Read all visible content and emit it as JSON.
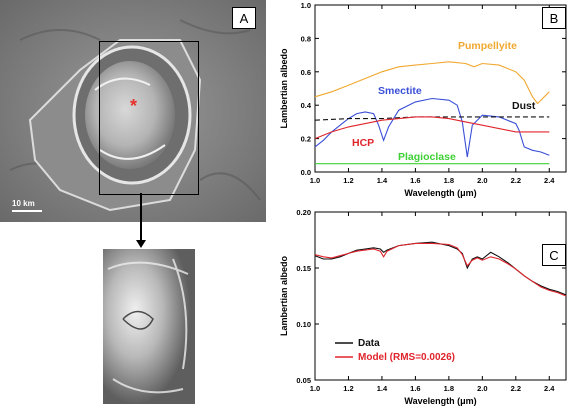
{
  "panels": {
    "a": {
      "letter": "A",
      "scale_label": "10 km"
    },
    "b": {
      "letter": "B"
    },
    "c": {
      "letter": "C"
    }
  },
  "colors": {
    "pumpellyite": "#f0a830",
    "smectite": "#3a4fd8",
    "dust": "#111111",
    "hcp": "#e0242c",
    "plagioclase": "#3ed036",
    "data": "#111111",
    "model": "#e0242c",
    "marker": "#e8302a"
  },
  "chart_data": [
    {
      "type": "line",
      "panel": "B",
      "xlabel": "Wavelength (μm)",
      "ylabel": "Lambertian albedo",
      "xlim": [
        1.0,
        2.5
      ],
      "ylim": [
        0.0,
        1.0
      ],
      "xticks": [
        "1.0",
        "1.2",
        "1.4",
        "1.6",
        "1.8",
        "2.0",
        "2.2",
        "2.4"
      ],
      "yticks": [
        "0.0",
        "0.2",
        "0.4",
        "0.6",
        "0.8",
        "1.0"
      ],
      "grid": false,
      "series": [
        {
          "name": "Pumpellyite",
          "dash": false,
          "x": [
            1.0,
            1.1,
            1.2,
            1.3,
            1.4,
            1.5,
            1.6,
            1.7,
            1.8,
            1.9,
            1.95,
            2.0,
            2.1,
            2.2,
            2.25,
            2.3,
            2.33,
            2.36,
            2.4
          ],
          "y": [
            0.45,
            0.48,
            0.52,
            0.56,
            0.6,
            0.63,
            0.64,
            0.65,
            0.66,
            0.65,
            0.63,
            0.65,
            0.64,
            0.6,
            0.55,
            0.45,
            0.41,
            0.44,
            0.48
          ]
        },
        {
          "name": "Smectite",
          "dash": false,
          "x": [
            1.0,
            1.05,
            1.1,
            1.15,
            1.2,
            1.25,
            1.3,
            1.35,
            1.38,
            1.41,
            1.44,
            1.5,
            1.6,
            1.7,
            1.8,
            1.85,
            1.88,
            1.91,
            1.94,
            2.0,
            2.1,
            2.2,
            2.22,
            2.25,
            2.3,
            2.35,
            2.4
          ],
          "y": [
            0.15,
            0.19,
            0.24,
            0.28,
            0.32,
            0.35,
            0.36,
            0.35,
            0.28,
            0.19,
            0.27,
            0.37,
            0.42,
            0.44,
            0.43,
            0.4,
            0.3,
            0.09,
            0.28,
            0.34,
            0.33,
            0.29,
            0.25,
            0.15,
            0.13,
            0.12,
            0.1
          ]
        },
        {
          "name": "Dust",
          "dash": true,
          "x": [
            1.0,
            1.2,
            1.4,
            1.6,
            1.8,
            2.0,
            2.2,
            2.4
          ],
          "y": [
            0.31,
            0.32,
            0.32,
            0.33,
            0.33,
            0.33,
            0.33,
            0.33
          ]
        },
        {
          "name": "HCP",
          "dash": false,
          "x": [
            1.0,
            1.1,
            1.2,
            1.3,
            1.4,
            1.5,
            1.6,
            1.7,
            1.8,
            1.9,
            2.0,
            2.1,
            2.2,
            2.3,
            2.4
          ],
          "y": [
            0.2,
            0.24,
            0.27,
            0.29,
            0.31,
            0.32,
            0.33,
            0.33,
            0.32,
            0.3,
            0.28,
            0.26,
            0.24,
            0.24,
            0.24
          ]
        },
        {
          "name": "Plagioclase",
          "dash": false,
          "x": [
            1.0,
            1.2,
            1.4,
            1.6,
            1.8,
            2.0,
            2.2,
            2.4
          ],
          "y": [
            0.05,
            0.05,
            0.05,
            0.05,
            0.05,
            0.05,
            0.05,
            0.05
          ]
        }
      ]
    },
    {
      "type": "line",
      "panel": "C",
      "xlabel": "Wavelength (μm)",
      "ylabel": "Lambertian albedo",
      "xlim": [
        1.0,
        2.5
      ],
      "ylim": [
        0.05,
        0.2
      ],
      "xticks": [
        "1.0",
        "1.2",
        "1.4",
        "1.6",
        "1.8",
        "2.0",
        "2.2",
        "2.4"
      ],
      "yticks": [
        "0.05",
        "0.10",
        "0.15",
        "0.20"
      ],
      "grid": false,
      "series": [
        {
          "name": "Data",
          "x": [
            1.0,
            1.05,
            1.1,
            1.15,
            1.2,
            1.25,
            1.3,
            1.35,
            1.39,
            1.41,
            1.43,
            1.5,
            1.6,
            1.7,
            1.8,
            1.85,
            1.88,
            1.91,
            1.94,
            1.97,
            2.0,
            2.05,
            2.1,
            2.15,
            2.2,
            2.25,
            2.3,
            2.35,
            2.4,
            2.45,
            2.5
          ],
          "y": [
            0.161,
            0.158,
            0.158,
            0.16,
            0.163,
            0.166,
            0.167,
            0.168,
            0.167,
            0.164,
            0.166,
            0.17,
            0.172,
            0.173,
            0.17,
            0.167,
            0.163,
            0.15,
            0.158,
            0.16,
            0.158,
            0.164,
            0.16,
            0.155,
            0.149,
            0.143,
            0.138,
            0.134,
            0.131,
            0.129,
            0.126
          ]
        },
        {
          "name": "Model (RMS=0.0026)",
          "x": [
            1.0,
            1.05,
            1.1,
            1.15,
            1.2,
            1.25,
            1.3,
            1.35,
            1.39,
            1.41,
            1.43,
            1.5,
            1.6,
            1.7,
            1.8,
            1.85,
            1.88,
            1.91,
            1.94,
            1.97,
            2.0,
            2.05,
            2.1,
            2.15,
            2.2,
            2.25,
            2.3,
            2.35,
            2.4,
            2.45,
            2.5
          ],
          "y": [
            0.162,
            0.16,
            0.159,
            0.161,
            0.163,
            0.165,
            0.166,
            0.167,
            0.165,
            0.16,
            0.165,
            0.17,
            0.172,
            0.172,
            0.171,
            0.168,
            0.162,
            0.152,
            0.157,
            0.159,
            0.157,
            0.16,
            0.158,
            0.154,
            0.149,
            0.143,
            0.138,
            0.133,
            0.13,
            0.128,
            0.125
          ]
        }
      ]
    }
  ]
}
